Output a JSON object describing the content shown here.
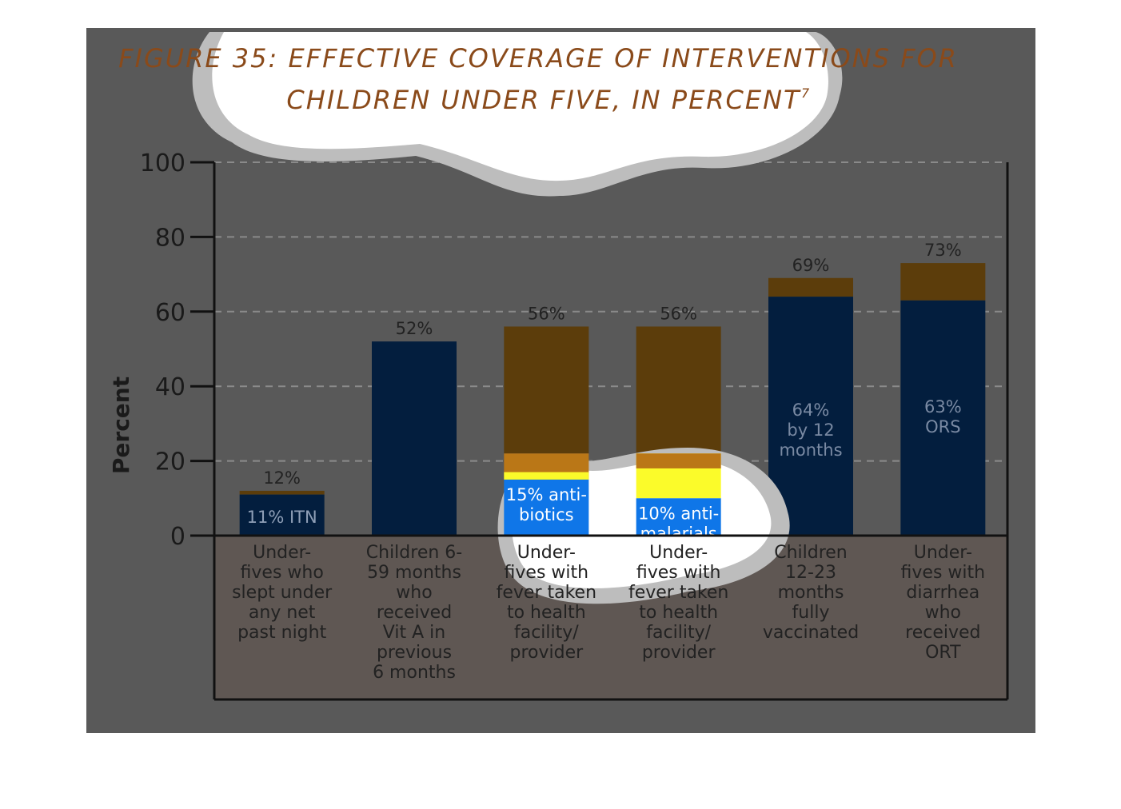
{
  "colors": {
    "background": "#595959",
    "plot_lower": "#5f5753",
    "dark_bar": "#031e3e",
    "top_bar": "#5c3d0b",
    "highlight_blue": "#0f76e8",
    "highlight_yellow": "#fbfb2a",
    "highlight_orange": "#ba7717",
    "title": "#8a4a1a",
    "grid": "#8a8a8a"
  },
  "chart_data": {
    "type": "bar",
    "title_line1": "FIGURE 35: EFFECTIVE COVERAGE OF INTERVENTIONS FOR",
    "title_line2": "CHILDREN UNDER FIVE, IN PERCENT",
    "title_sup": "7",
    "ylabel": "Percent",
    "xlabel": "",
    "ylim": [
      0,
      100
    ],
    "yticks": [
      0,
      20,
      40,
      60,
      80,
      100
    ],
    "grid": true,
    "categories": [
      [
        "Under-",
        "fives who",
        "slept under",
        "any net",
        "past night"
      ],
      [
        "Children 6-",
        "59 months",
        "who",
        "received",
        "Vit A in",
        "previous",
        "6 months"
      ],
      [
        "Under-",
        "fives with",
        "fever taken",
        "to health",
        "facility/",
        "provider"
      ],
      [
        "Under-",
        "fives with",
        "fever taken",
        "to health",
        "facility/",
        "provider"
      ],
      [
        "Children",
        "12-23",
        "months",
        "fully",
        "vaccinated"
      ],
      [
        "Under-",
        "fives with",
        "diarrhea",
        "who",
        "received",
        "ORT"
      ]
    ],
    "totals": [
      12,
      52,
      56,
      56,
      69,
      73
    ],
    "total_labels": [
      "12%",
      "52%",
      "56%",
      "56%",
      "69%",
      "73%"
    ],
    "effective": [
      11,
      52,
      15,
      10,
      64,
      63
    ],
    "effective_labels": [
      [
        "11% ITN"
      ],
      [],
      [
        "15% anti-",
        "biotics"
      ],
      [
        "10% anti-",
        "malarials"
      ],
      [
        "64%",
        "by 12",
        "months"
      ],
      [
        "63%",
        "ORS"
      ]
    ]
  }
}
